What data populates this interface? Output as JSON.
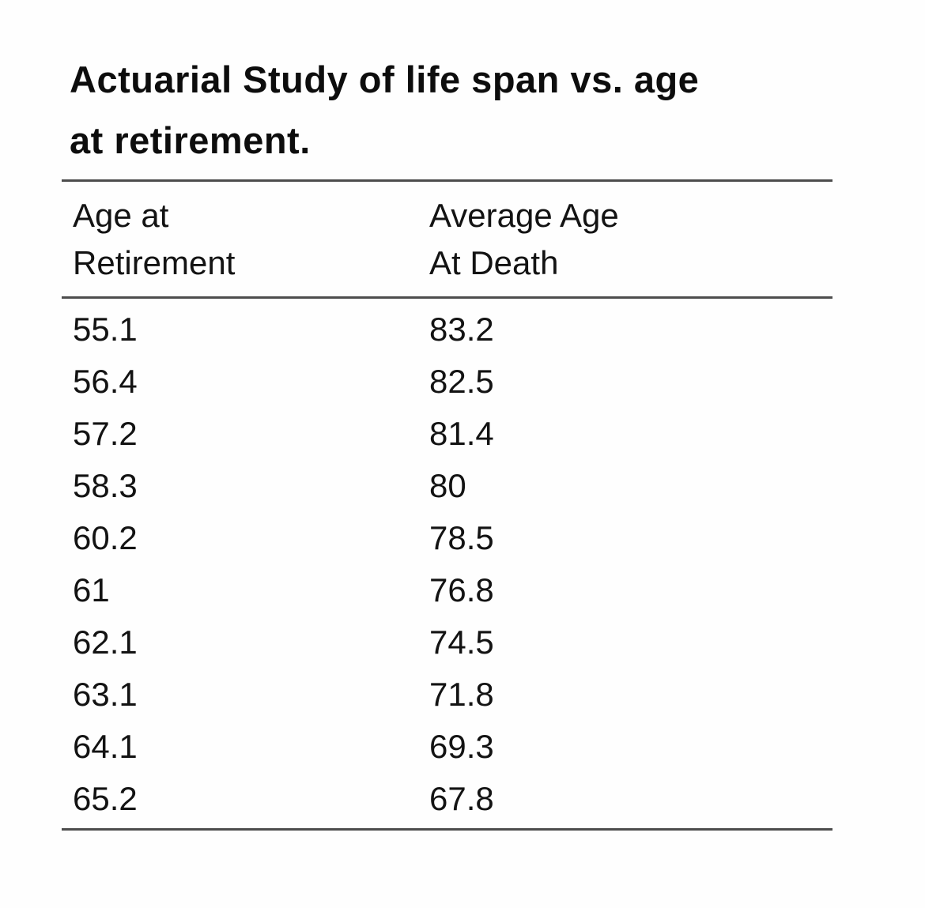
{
  "title": "Actuarial Study of life span vs. age\nat retirement.",
  "table": {
    "header_left": "Age at\nRetirement",
    "header_right": "Average Age\nAt Death"
  },
  "colors": {
    "background": "#fefefe",
    "text": "#101010",
    "rule": "#4d4d4d"
  },
  "chart_data": {
    "type": "table",
    "title": "Actuarial Study of life span vs. age at retirement.",
    "columns": [
      "Age at Retirement",
      "Average Age At Death"
    ],
    "rows": [
      [
        55.1,
        83.2
      ],
      [
        56.4,
        82.5
      ],
      [
        57.2,
        81.4
      ],
      [
        58.3,
        80
      ],
      [
        60.2,
        78.5
      ],
      [
        61,
        76.8
      ],
      [
        62.1,
        74.5
      ],
      [
        63.1,
        71.8
      ],
      [
        64.1,
        69.3
      ],
      [
        65.2,
        67.8
      ]
    ]
  }
}
